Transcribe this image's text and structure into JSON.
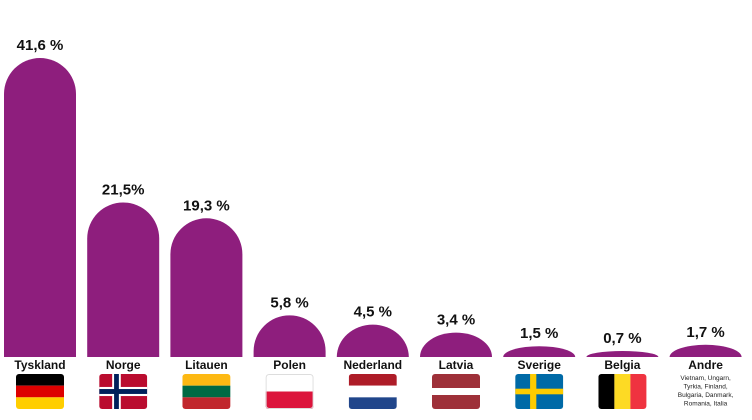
{
  "chart_data": {
    "type": "bar",
    "categories": [
      "Tyskland",
      "Norge",
      "Litauen",
      "Polen",
      "Nederland",
      "Latvia",
      "Sverige",
      "Belgia",
      "Andre"
    ],
    "values": [
      41.6,
      21.5,
      19.3,
      5.8,
      4.5,
      3.4,
      1.5,
      0.7,
      1.7
    ],
    "value_labels": [
      "41,6 %",
      "21,5%",
      "19,3 %",
      "5,8 %",
      "4,5 %",
      "3,4 %",
      "1,5 %",
      "0,7 %",
      "1,7 %"
    ],
    "other_note": [
      "Vietnam, Ungarn,",
      "Tyrkia, Finland,",
      "Bulgaria, Danmark,",
      "Romania, Italia"
    ],
    "flags": [
      "germany-flag",
      "norway-flag",
      "lithuania-flag",
      "poland-flag",
      "netherlands-flag",
      "latvia-flag",
      "sweden-flag",
      "belgium-flag",
      ""
    ],
    "bar_color": "#8e1e7d",
    "ylim": [
      0,
      41.6
    ],
    "grid": false,
    "title": "",
    "xlabel": "",
    "ylabel": ""
  }
}
